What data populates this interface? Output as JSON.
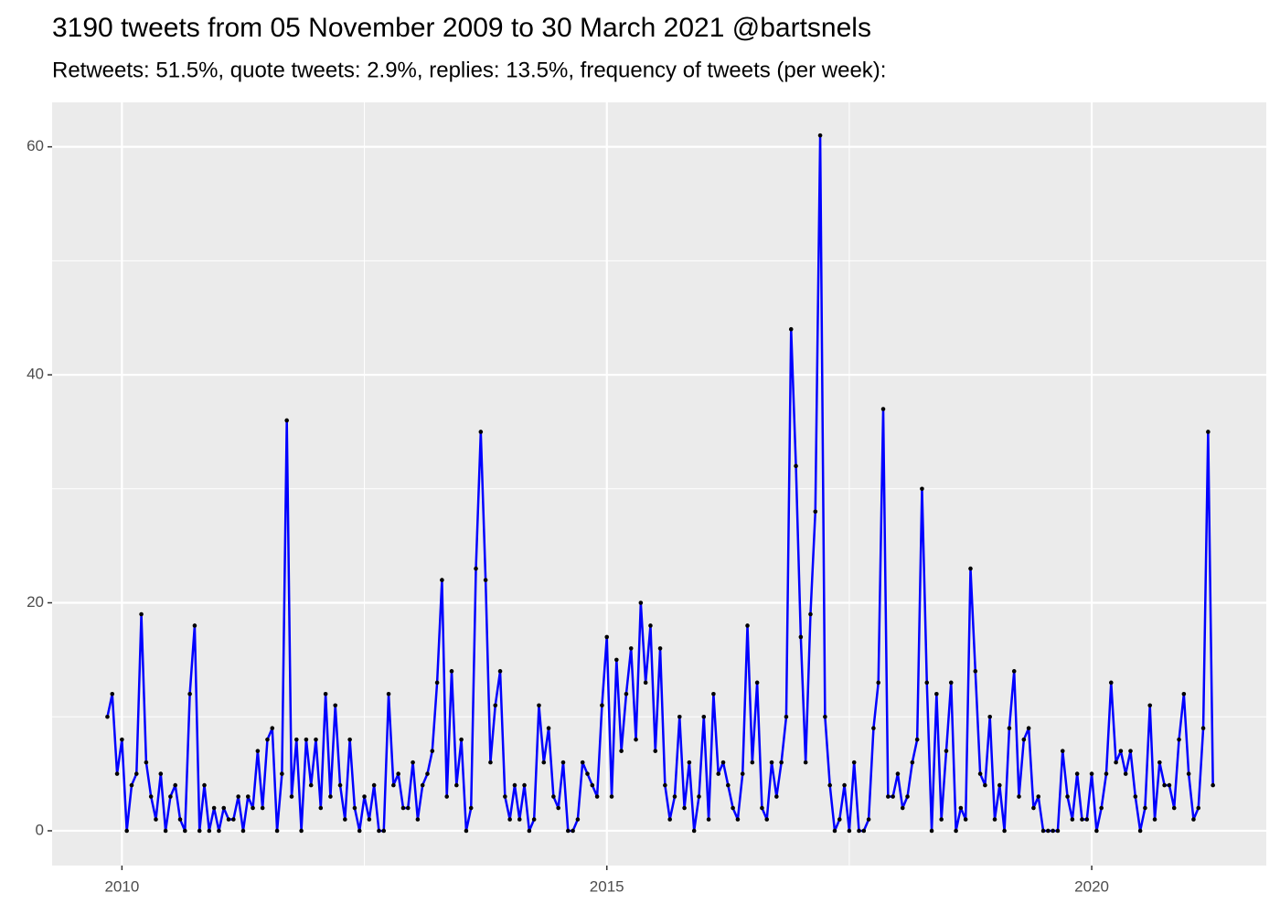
{
  "chart_data": {
    "type": "line",
    "title": "3190 tweets from 05 November 2009 to 30 March 2021 @bartsnels",
    "subtitle": "Retweets: 51.5%, quote tweets: 2.9%, replies: 13.5%, frequency of tweets (per week):",
    "x": [
      2009.85,
      2009.9,
      2009.95,
      2010,
      2010.05,
      2010.1,
      2010.15,
      2010.2,
      2010.25,
      2010.3,
      2010.35,
      2010.4,
      2010.45,
      2010.5,
      2010.55,
      2010.6,
      2010.65,
      2010.7,
      2010.75,
      2010.8,
      2010.85,
      2010.9,
      2010.95,
      2011,
      2011.05,
      2011.1,
      2011.15,
      2011.2,
      2011.25,
      2011.3,
      2011.35,
      2011.4,
      2011.45,
      2011.5,
      2011.55,
      2011.6,
      2011.65,
      2011.7,
      2011.75,
      2011.8,
      2011.85,
      2011.9,
      2011.95,
      2012,
      2012.05,
      2012.1,
      2012.15,
      2012.2,
      2012.25,
      2012.3,
      2012.35,
      2012.4,
      2012.45,
      2012.5,
      2012.55,
      2012.6,
      2012.65,
      2012.7,
      2012.75,
      2012.8,
      2012.85,
      2012.9,
      2012.95,
      2013,
      2013.05,
      2013.1,
      2013.15,
      2013.2,
      2013.25,
      2013.3,
      2013.35,
      2013.4,
      2013.45,
      2013.5,
      2013.55,
      2013.6,
      2013.65,
      2013.7,
      2013.75,
      2013.8,
      2013.85,
      2013.9,
      2013.95,
      2014,
      2014.05,
      2014.1,
      2014.15,
      2014.2,
      2014.25,
      2014.3,
      2014.35,
      2014.4,
      2014.45,
      2014.5,
      2014.55,
      2014.6,
      2014.65,
      2014.7,
      2014.75,
      2014.8,
      2014.85,
      2014.9,
      2014.95,
      2015,
      2015.05,
      2015.1,
      2015.15,
      2015.2,
      2015.25,
      2015.3,
      2015.35,
      2015.4,
      2015.45,
      2015.5,
      2015.55,
      2015.6,
      2015.65,
      2015.7,
      2015.75,
      2015.8,
      2015.85,
      2015.9,
      2015.95,
      2016,
      2016.05,
      2016.1,
      2016.15,
      2016.2,
      2016.25,
      2016.3,
      2016.35,
      2016.4,
      2016.45,
      2016.5,
      2016.55,
      2016.6,
      2016.65,
      2016.7,
      2016.75,
      2016.8,
      2016.85,
      2016.9,
      2016.95,
      2017,
      2017.05,
      2017.1,
      2017.15,
      2017.2,
      2017.25,
      2017.3,
      2017.35,
      2017.4,
      2017.45,
      2017.5,
      2017.55,
      2017.6,
      2017.65,
      2017.7,
      2017.75,
      2017.8,
      2017.85,
      2017.9,
      2017.95,
      2018,
      2018.05,
      2018.1,
      2018.15,
      2018.2,
      2018.25,
      2018.3,
      2018.35,
      2018.4,
      2018.45,
      2018.5,
      2018.55,
      2018.6,
      2018.65,
      2018.7,
      2018.75,
      2018.8,
      2018.85,
      2018.9,
      2018.95,
      2019,
      2019.05,
      2019.1,
      2019.15,
      2019.2,
      2019.25,
      2019.3,
      2019.35,
      2019.4,
      2019.45,
      2019.5,
      2019.55,
      2019.6,
      2019.65,
      2019.7,
      2019.75,
      2019.8,
      2019.85,
      2019.9,
      2019.95,
      2020,
      2020.05,
      2020.1,
      2020.15,
      2020.2,
      2020.25,
      2020.3,
      2020.35,
      2020.4,
      2020.45,
      2020.5,
      2020.55,
      2020.6,
      2020.65,
      2020.7,
      2020.75,
      2020.8,
      2020.85,
      2020.9,
      2020.95,
      2021,
      2021.05,
      2021.1,
      2021.15,
      2021.2,
      2021.25
    ],
    "values": [
      10,
      12,
      5,
      8,
      0,
      4,
      5,
      19,
      6,
      3,
      1,
      5,
      0,
      3,
      4,
      1,
      0,
      12,
      18,
      0,
      4,
      0,
      2,
      0,
      2,
      1,
      1,
      3,
      0,
      3,
      2,
      7,
      2,
      8,
      9,
      0,
      5,
      36,
      3,
      8,
      0,
      8,
      4,
      8,
      2,
      12,
      3,
      11,
      4,
      1,
      8,
      2,
      0,
      3,
      1,
      4,
      0,
      0,
      12,
      4,
      5,
      2,
      2,
      6,
      1,
      4,
      5,
      7,
      13,
      22,
      3,
      14,
      4,
      8,
      0,
      2,
      23,
      35,
      22,
      6,
      11,
      14,
      3,
      1,
      4,
      1,
      4,
      0,
      1,
      11,
      6,
      9,
      3,
      2,
      6,
      0,
      0,
      1,
      6,
      5,
      4,
      3,
      11,
      17,
      3,
      15,
      7,
      12,
      16,
      8,
      20,
      13,
      18,
      7,
      16,
      4,
      1,
      3,
      10,
      2,
      6,
      0,
      3,
      10,
      1,
      12,
      5,
      6,
      4,
      2,
      1,
      5,
      18,
      6,
      13,
      2,
      1,
      6,
      3,
      6,
      10,
      44,
      32,
      17,
      6,
      19,
      28,
      61,
      10,
      4,
      0,
      1,
      4,
      0,
      6,
      0,
      0,
      1,
      9,
      13,
      37,
      3,
      3,
      5,
      2,
      3,
      6,
      8,
      30,
      13,
      0,
      12,
      1,
      7,
      13,
      0,
      2,
      1,
      23,
      14,
      5,
      4,
      10,
      1,
      4,
      0,
      9,
      14,
      3,
      8,
      9,
      2,
      3,
      0,
      0,
      0,
      0,
      7,
      3,
      1,
      5,
      1,
      1,
      5,
      0,
      2,
      5,
      13,
      6,
      7,
      5,
      7,
      3,
      0,
      2,
      11,
      1,
      6,
      4,
      4,
      2,
      8,
      12,
      5,
      1,
      2,
      9,
      35,
      4
    ],
    "color": "#0000ff",
    "point_color": "#000000",
    "xlim": [
      2009.28,
      2021.8
    ],
    "xticks": [
      2010,
      2015,
      2020
    ],
    "x_minor_grid": [
      2012.5,
      2017.5
    ],
    "ylim": [
      -3.05,
      63.9
    ],
    "yticks": [
      0,
      20,
      40,
      60
    ],
    "y_minor_grid": [
      10,
      30,
      50
    ],
    "grid": true
  }
}
